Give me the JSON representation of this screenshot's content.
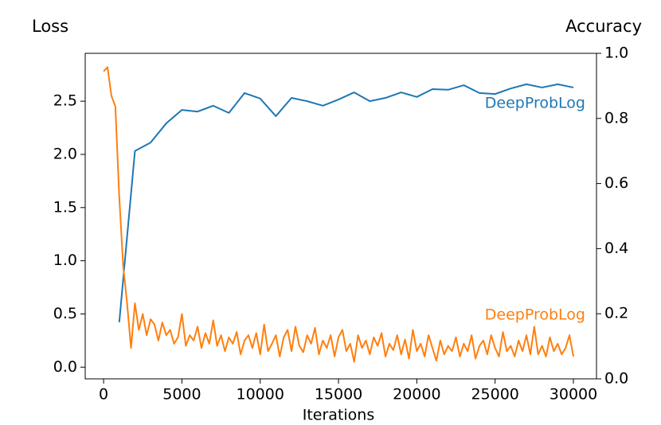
{
  "chart_data": {
    "type": "line",
    "ylabel": "Loss",
    "y2label": "Accuracy",
    "xlabel": "Iterations",
    "xlim": [
      -1175,
      31475
    ],
    "xticks": [
      0,
      5000,
      10000,
      15000,
      20000,
      25000,
      30000
    ],
    "ylim": [
      -0.11,
      2.95
    ],
    "yticks": [
      {
        "value": 0,
        "label": "0.0"
      },
      {
        "value": 0.5,
        "label": "0.5"
      },
      {
        "value": 1,
        "label": "1.0"
      },
      {
        "value": 1.5,
        "label": "1.5"
      },
      {
        "value": 2,
        "label": "2.0"
      },
      {
        "value": 2.5,
        "label": "2.5"
      }
    ],
    "y2lim": [
      0,
      1
    ],
    "y2ticks": [
      {
        "value": 0,
        "label": "0.0"
      },
      {
        "value": 0.2,
        "label": "0.2"
      },
      {
        "value": 0.4,
        "label": "0.4"
      },
      {
        "value": 0.6,
        "label": "0.6"
      },
      {
        "value": 0.8,
        "label": "0.8"
      },
      {
        "value": 1,
        "label": "1.0"
      }
    ],
    "series": [
      {
        "name": "DeepProbLog",
        "color": "#1f77b4",
        "axis": "y2",
        "x": [
          1000,
          2000,
          3000,
          4000,
          5000,
          6000,
          7000,
          8000,
          9000,
          10000,
          11000,
          12000,
          13000,
          14000,
          15000,
          16000,
          17000,
          18000,
          19000,
          20000,
          21000,
          22000,
          23000,
          24000,
          25000,
          26000,
          27000,
          28000,
          29000,
          30000
        ],
        "values": [
          0.174,
          0.7,
          0.726,
          0.785,
          0.826,
          0.821,
          0.839,
          0.817,
          0.878,
          0.861,
          0.807,
          0.863,
          0.853,
          0.839,
          0.858,
          0.88,
          0.853,
          0.863,
          0.88,
          0.866,
          0.89,
          0.888,
          0.902,
          0.878,
          0.875,
          0.892,
          0.905,
          0.895,
          0.905,
          0.895
        ]
      },
      {
        "name": "DeepProbLog",
        "color": "#ff7f0e",
        "axis": "y",
        "x": [
          0,
          250,
          500,
          750,
          1000,
          1250,
          1500,
          1750,
          2000,
          2250,
          2500,
          2750,
          3000,
          3250,
          3500,
          3750,
          4000,
          4250,
          4500,
          4750,
          5000,
          5250,
          5500,
          5750,
          6000,
          6250,
          6500,
          6750,
          7000,
          7250,
          7500,
          7750,
          8000,
          8250,
          8500,
          8750,
          9000,
          9250,
          9500,
          9750,
          10000,
          10250,
          10500,
          10750,
          11000,
          11250,
          11500,
          11750,
          12000,
          12250,
          12500,
          12750,
          13000,
          13250,
          13500,
          13750,
          14000,
          14250,
          14500,
          14750,
          15000,
          15250,
          15500,
          15750,
          16000,
          16250,
          16500,
          16750,
          17000,
          17250,
          17500,
          17750,
          18000,
          18250,
          18500,
          18750,
          19000,
          19250,
          19500,
          19750,
          20000,
          20250,
          20500,
          20750,
          21000,
          21250,
          21500,
          21750,
          22000,
          22250,
          22500,
          22750,
          23000,
          23250,
          23500,
          23750,
          24000,
          24250,
          24500,
          24750,
          25000,
          25250,
          25500,
          25750,
          26000,
          26250,
          26500,
          26750,
          27000,
          27250,
          27500,
          27750,
          28000,
          28250,
          28500,
          28750,
          29000,
          29250,
          29500,
          29750,
          30000
        ],
        "values": [
          2.78,
          2.82,
          2.55,
          2.45,
          1.6,
          0.95,
          0.6,
          0.18,
          0.6,
          0.35,
          0.5,
          0.3,
          0.45,
          0.4,
          0.25,
          0.42,
          0.3,
          0.35,
          0.22,
          0.28,
          0.5,
          0.2,
          0.3,
          0.25,
          0.38,
          0.18,
          0.32,
          0.22,
          0.44,
          0.2,
          0.3,
          0.15,
          0.28,
          0.22,
          0.33,
          0.12,
          0.25,
          0.3,
          0.18,
          0.32,
          0.12,
          0.4,
          0.15,
          0.22,
          0.3,
          0.1,
          0.28,
          0.35,
          0.15,
          0.38,
          0.2,
          0.14,
          0.3,
          0.22,
          0.37,
          0.12,
          0.25,
          0.18,
          0.3,
          0.1,
          0.28,
          0.35,
          0.15,
          0.22,
          0.05,
          0.3,
          0.18,
          0.25,
          0.12,
          0.28,
          0.2,
          0.32,
          0.1,
          0.22,
          0.16,
          0.3,
          0.12,
          0.26,
          0.08,
          0.35,
          0.15,
          0.22,
          0.1,
          0.3,
          0.18,
          0.06,
          0.25,
          0.12,
          0.2,
          0.15,
          0.28,
          0.1,
          0.22,
          0.15,
          0.3,
          0.08,
          0.2,
          0.25,
          0.12,
          0.3,
          0.18,
          0.1,
          0.33,
          0.15,
          0.2,
          0.1,
          0.25,
          0.15,
          0.3,
          0.12,
          0.38,
          0.12,
          0.2,
          0.1,
          0.28,
          0.15,
          0.22,
          0.12,
          0.18,
          0.3,
          0.1
        ]
      }
    ]
  }
}
